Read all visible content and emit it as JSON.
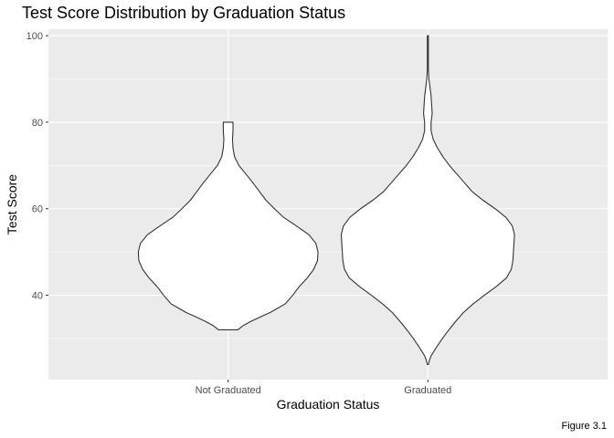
{
  "chart_data": {
    "type": "violin",
    "title": "Test Score Distribution by Graduation Status",
    "xlabel": "Graduation Status",
    "ylabel": "Test Score",
    "caption": "Figure 3.1",
    "categories": [
      "Not Graduated",
      "Graduated"
    ],
    "ylim": [
      20.5,
      101.5
    ],
    "yticks": [
      40,
      60,
      80,
      100
    ],
    "grid": true,
    "fill_color": "#ffffff",
    "outline_color": "#333333",
    "panel_color": "#ebebeb",
    "grid_color": "#ffffff",
    "series": [
      {
        "category": "Not Graduated",
        "min": 32,
        "max": 80,
        "profile": [
          [
            32,
            0.18
          ],
          [
            33,
            0.28
          ],
          [
            34,
            0.43
          ],
          [
            35,
            0.6
          ],
          [
            36,
            0.78
          ],
          [
            37,
            0.92
          ],
          [
            38,
            1.06
          ],
          [
            40,
            1.2
          ],
          [
            42,
            1.32
          ],
          [
            44,
            1.47
          ],
          [
            46,
            1.59
          ],
          [
            48,
            1.66
          ],
          [
            50,
            1.67
          ],
          [
            52,
            1.63
          ],
          [
            54,
            1.5
          ],
          [
            56,
            1.27
          ],
          [
            58,
            1.03
          ],
          [
            60,
            0.86
          ],
          [
            62,
            0.7
          ],
          [
            64,
            0.58
          ],
          [
            66,
            0.46
          ],
          [
            68,
            0.33
          ],
          [
            70,
            0.2
          ],
          [
            72,
            0.12
          ],
          [
            74,
            0.09
          ],
          [
            76,
            0.08
          ],
          [
            78,
            0.09
          ],
          [
            79,
            0.09
          ],
          [
            80,
            0.09
          ]
        ]
      },
      {
        "category": "Graduated",
        "min": 24,
        "max": 100,
        "profile": [
          [
            24,
            0.01
          ],
          [
            25,
            0.03
          ],
          [
            26,
            0.06
          ],
          [
            28,
            0.16
          ],
          [
            30,
            0.27
          ],
          [
            32,
            0.39
          ],
          [
            34,
            0.52
          ],
          [
            36,
            0.66
          ],
          [
            38,
            0.84
          ],
          [
            40,
            1.05
          ],
          [
            42,
            1.27
          ],
          [
            44,
            1.46
          ],
          [
            46,
            1.55
          ],
          [
            48,
            1.58
          ],
          [
            50,
            1.59
          ],
          [
            52,
            1.6
          ],
          [
            54,
            1.61
          ],
          [
            56,
            1.57
          ],
          [
            58,
            1.45
          ],
          [
            60,
            1.25
          ],
          [
            62,
            1.02
          ],
          [
            64,
            0.82
          ],
          [
            66,
            0.68
          ],
          [
            68,
            0.54
          ],
          [
            70,
            0.4
          ],
          [
            72,
            0.28
          ],
          [
            74,
            0.18
          ],
          [
            76,
            0.1
          ],
          [
            78,
            0.06
          ],
          [
            80,
            0.06
          ],
          [
            82,
            0.08
          ],
          [
            84,
            0.07
          ],
          [
            86,
            0.06
          ],
          [
            88,
            0.04
          ],
          [
            90,
            0.02
          ],
          [
            92,
            0.01
          ],
          [
            94,
            0.01
          ],
          [
            96,
            0.01
          ],
          [
            98,
            0.01
          ],
          [
            100,
            0.01
          ]
        ]
      }
    ]
  }
}
